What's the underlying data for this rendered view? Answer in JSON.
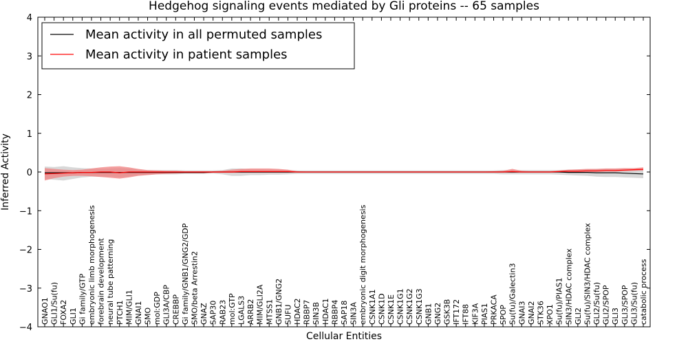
{
  "chart_data": {
    "type": "line",
    "title": "Hedgehog signaling events mediated by Gli proteins -- 65 samples",
    "xlabel": "Cellular Entities",
    "ylabel": "Inferred Activity",
    "ylim": [
      -4,
      4
    ],
    "yticks": [
      "4",
      "3",
      "2",
      "1",
      "0",
      "−1",
      "−2",
      "−3",
      "−4"
    ],
    "grid": false,
    "legend_position": "top-left",
    "colors": {
      "permuted": "#000000",
      "patient": "#ff0000",
      "permuted_band": "#c8c8c8",
      "patient_band": "#f08080"
    },
    "categories": [
      "GNAO1",
      "GLI1/Su(fu)",
      "FOXA2",
      "GLI1",
      "Gi family/GTP",
      "embryonic limb morphogenesis",
      "forebrain development",
      "neural tube patterning",
      "PTCH1",
      "MIM/GLI1",
      "GNAI1",
      "SMO",
      "mol:GDP",
      "GLI3A/CBP",
      "CREBBP",
      "Gi family/GNB1/GNG2/GDP",
      "SMO/beta Arrestin2",
      "GNAZ",
      "SAP30",
      "RAB23",
      "mol:GTP",
      "LGALS3",
      "ARRB2",
      "MIM/GLI2A",
      "MTSS1",
      "GNB1/GNG2",
      "SUFU",
      "HDAC2",
      "RBBP7",
      "SIN3B",
      "HDAC1",
      "RBBP4",
      "SAP18",
      "SIN3A",
      "embryonic digit morphogenesis",
      "CSNK1A1",
      "CSNK1D",
      "CSNK1E",
      "CSNK1G1",
      "CSNK1G2",
      "CSNK1G3",
      "GNB1",
      "GNG2",
      "GSK3B",
      "IFT172",
      "IFT88",
      "KIF3A",
      "PIAS1",
      "PRKACA",
      "SPOP",
      "Su(fu)/Galectin3",
      "GNAI3",
      "GNAI2",
      "STK36",
      "XPO1",
      "Su(fu)/PIAS1",
      "SIN3/HDAC complex",
      "GLI2",
      "Su(fu)/SIN3/HDAC complex",
      "GLI2/Su(fu)",
      "GLI2/SPOP",
      "GLI3",
      "GLI3/SPOP",
      "GLI3/Su(fu)",
      "catabolic process"
    ],
    "series": [
      {
        "name": "Mean activity in all permuted samples",
        "values": [
          -0.02,
          -0.02,
          -0.02,
          -0.02,
          -0.01,
          -0.01,
          -0.01,
          -0.01,
          -0.01,
          -0.01,
          -0.01,
          -0.01,
          -0.01,
          -0.01,
          -0.01,
          -0.01,
          -0.01,
          -0.01,
          0.0,
          0.0,
          0.0,
          0.0,
          0.0,
          0.0,
          0.0,
          0.0,
          0.0,
          0.0,
          0.0,
          0.0,
          0.0,
          0.0,
          0.0,
          0.0,
          0.0,
          0.0,
          0.0,
          0.0,
          0.0,
          0.0,
          0.0,
          0.0,
          0.0,
          0.0,
          0.0,
          0.0,
          0.0,
          0.0,
          0.0,
          0.0,
          0.0,
          0.0,
          0.0,
          0.0,
          0.0,
          0.0,
          -0.01,
          -0.01,
          -0.01,
          -0.02,
          -0.02,
          -0.02,
          -0.03,
          -0.04,
          -0.05
        ],
        "lower": [
          -0.18,
          -0.2,
          -0.22,
          -0.18,
          -0.14,
          -0.12,
          -0.12,
          -0.12,
          -0.14,
          -0.12,
          -0.08,
          -0.07,
          -0.06,
          -0.06,
          -0.06,
          -0.05,
          -0.05,
          -0.05,
          -0.04,
          -0.06,
          -0.1,
          -0.1,
          -0.08,
          -0.08,
          -0.07,
          -0.07,
          -0.06,
          -0.05,
          -0.05,
          -0.05,
          -0.05,
          -0.05,
          -0.05,
          -0.05,
          -0.05,
          -0.05,
          -0.05,
          -0.05,
          -0.05,
          -0.05,
          -0.05,
          -0.05,
          -0.05,
          -0.05,
          -0.05,
          -0.05,
          -0.05,
          -0.05,
          -0.05,
          -0.06,
          -0.06,
          -0.06,
          -0.06,
          -0.06,
          -0.06,
          -0.07,
          -0.08,
          -0.09,
          -0.1,
          -0.12,
          -0.13,
          -0.13,
          -0.14,
          -0.15,
          -0.16
        ],
        "upper": [
          0.14,
          0.13,
          0.15,
          0.12,
          0.1,
          0.09,
          0.08,
          0.09,
          0.1,
          0.09,
          0.06,
          0.05,
          0.05,
          0.05,
          0.05,
          0.04,
          0.04,
          0.04,
          0.04,
          0.05,
          0.09,
          0.09,
          0.07,
          0.07,
          0.06,
          0.06,
          0.05,
          0.04,
          0.04,
          0.04,
          0.04,
          0.04,
          0.04,
          0.04,
          0.04,
          0.04,
          0.04,
          0.04,
          0.04,
          0.04,
          0.04,
          0.04,
          0.04,
          0.04,
          0.04,
          0.04,
          0.04,
          0.04,
          0.04,
          0.05,
          0.05,
          0.05,
          0.05,
          0.05,
          0.05,
          0.05,
          0.06,
          0.06,
          0.07,
          0.08,
          0.08,
          0.08,
          0.08,
          0.08,
          0.08
        ]
      },
      {
        "name": "Mean activity in patient samples",
        "values": [
          -0.05,
          -0.04,
          -0.03,
          -0.02,
          -0.01,
          -0.01,
          0.0,
          0.0,
          -0.02,
          0.0,
          0.0,
          0.0,
          0.0,
          0.0,
          0.0,
          0.0,
          0.0,
          0.0,
          0.0,
          0.0,
          0.0,
          0.01,
          0.01,
          0.01,
          0.01,
          0.01,
          0.01,
          0.0,
          0.0,
          0.0,
          0.0,
          0.0,
          0.0,
          0.0,
          0.0,
          0.0,
          0.0,
          0.0,
          0.0,
          0.0,
          0.0,
          0.0,
          0.0,
          0.0,
          0.0,
          0.0,
          0.0,
          0.0,
          0.0,
          0.0,
          0.01,
          0.0,
          0.0,
          0.0,
          0.0,
          0.01,
          0.02,
          0.02,
          0.03,
          0.03,
          0.04,
          0.04,
          0.05,
          0.06,
          0.07
        ],
        "lower": [
          -0.22,
          -0.16,
          -0.12,
          -0.1,
          -0.1,
          -0.11,
          -0.13,
          -0.15,
          -0.17,
          -0.14,
          -0.1,
          -0.08,
          -0.06,
          -0.05,
          -0.04,
          -0.03,
          -0.03,
          -0.03,
          -0.02,
          -0.02,
          -0.02,
          -0.02,
          -0.02,
          -0.02,
          -0.02,
          -0.02,
          -0.02,
          -0.01,
          -0.01,
          -0.01,
          -0.01,
          -0.01,
          -0.01,
          -0.01,
          -0.01,
          -0.01,
          -0.01,
          -0.01,
          -0.01,
          -0.01,
          -0.01,
          -0.01,
          -0.01,
          -0.01,
          -0.01,
          -0.01,
          -0.01,
          -0.01,
          -0.01,
          -0.01,
          -0.02,
          -0.01,
          -0.01,
          -0.01,
          -0.01,
          -0.01,
          -0.01,
          -0.01,
          0.0,
          0.0,
          0.01,
          0.01,
          0.02,
          0.03,
          0.04
        ],
        "upper": [
          0.1,
          0.08,
          0.06,
          0.05,
          0.06,
          0.09,
          0.12,
          0.14,
          0.15,
          0.12,
          0.08,
          0.05,
          0.04,
          0.03,
          0.03,
          0.02,
          0.02,
          0.02,
          0.02,
          0.03,
          0.06,
          0.08,
          0.09,
          0.09,
          0.09,
          0.08,
          0.06,
          0.02,
          0.01,
          0.01,
          0.01,
          0.01,
          0.01,
          0.01,
          0.01,
          0.01,
          0.01,
          0.01,
          0.01,
          0.01,
          0.01,
          0.01,
          0.01,
          0.01,
          0.01,
          0.01,
          0.01,
          0.01,
          0.02,
          0.03,
          0.08,
          0.03,
          0.02,
          0.02,
          0.02,
          0.04,
          0.06,
          0.07,
          0.08,
          0.08,
          0.09,
          0.09,
          0.1,
          0.1,
          0.12
        ]
      }
    ]
  }
}
